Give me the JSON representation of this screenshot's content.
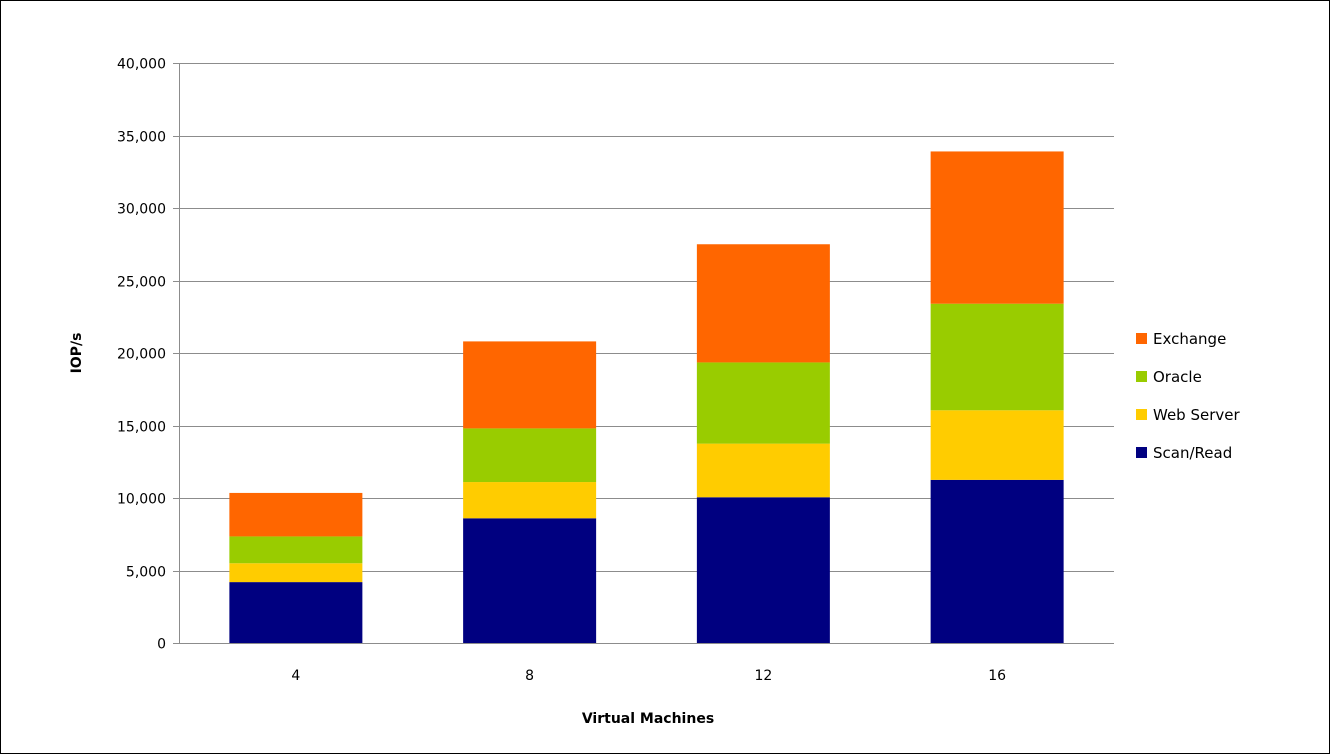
{
  "chart_data": {
    "type": "bar",
    "stacked": true,
    "categories": [
      "4",
      "8",
      "12",
      "16"
    ],
    "series": [
      {
        "name": "Scan/Read",
        "color": "#000080",
        "values": [
          4200,
          8600,
          10050,
          11250
        ]
      },
      {
        "name": "Web Server",
        "color": "#ffcc00",
        "values": [
          1300,
          2500,
          3700,
          4800
        ]
      },
      {
        "name": "Oracle",
        "color": "#99cc00",
        "values": [
          1850,
          3700,
          5600,
          7350
        ]
      },
      {
        "name": "Exchange",
        "color": "#ff6600",
        "values": [
          3000,
          6000,
          8150,
          10500
        ]
      }
    ],
    "xlabel": "Virtual Machines",
    "ylabel": "IOP/s",
    "ylim": [
      0,
      40000
    ],
    "yticks": [
      0,
      5000,
      10000,
      15000,
      20000,
      25000,
      30000,
      35000,
      40000
    ],
    "ytick_labels": [
      "0",
      "5,000",
      "10,000",
      "15,000",
      "20,000",
      "25,000",
      "30,000",
      "35,000",
      "40,000"
    ],
    "grid": true,
    "legend_position": "right",
    "legend_order": [
      "Exchange",
      "Oracle",
      "Web Server",
      "Scan/Read"
    ]
  }
}
